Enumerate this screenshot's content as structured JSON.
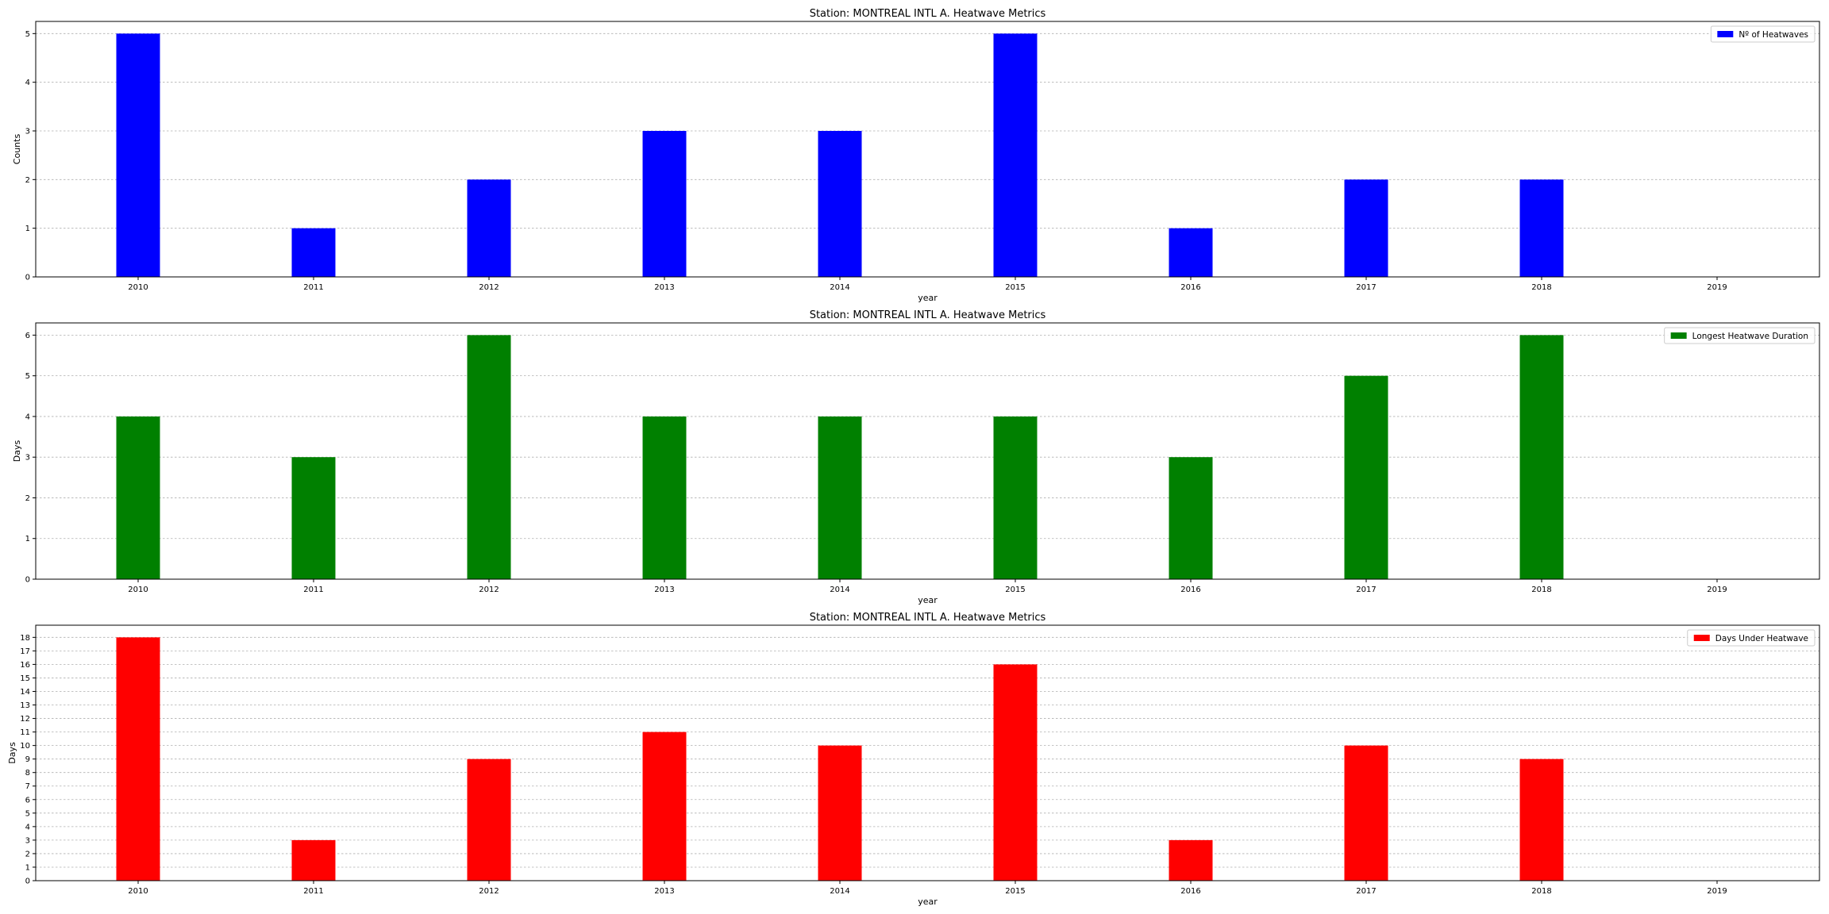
{
  "chart_data": [
    {
      "type": "bar",
      "title": "Station: MONTREAL INTL A. Heatwave Metrics",
      "xlabel": "year",
      "ylabel": "Counts",
      "categories": [
        "2010",
        "2011",
        "2012",
        "2013",
        "2014",
        "2015",
        "2016",
        "2017",
        "2018",
        "2019"
      ],
      "series": [
        {
          "name": "Nº of Heatwaves",
          "color": "#0000ff",
          "values": [
            5,
            1,
            2,
            3,
            3,
            5,
            1,
            2,
            2,
            0
          ]
        }
      ],
      "ylim": [
        0,
        5.25
      ],
      "yticks": [
        0,
        1,
        2,
        3,
        4,
        5
      ],
      "grid": "y-dashed",
      "legend_position": "top-right"
    },
    {
      "type": "bar",
      "title": "Station: MONTREAL INTL A. Heatwave Metrics",
      "xlabel": "year",
      "ylabel": "Days",
      "categories": [
        "2010",
        "2011",
        "2012",
        "2013",
        "2014",
        "2015",
        "2016",
        "2017",
        "2018",
        "2019"
      ],
      "series": [
        {
          "name": "Longest Heatwave Duration",
          "color": "#008000",
          "values": [
            4,
            3,
            6,
            4,
            4,
            4,
            3,
            5,
            6,
            0
          ]
        }
      ],
      "ylim": [
        0,
        6.3
      ],
      "yticks": [
        0,
        1,
        2,
        3,
        4,
        5,
        6
      ],
      "grid": "y-dashed",
      "legend_position": "top-right"
    },
    {
      "type": "bar",
      "title": "Station: MONTREAL INTL A. Heatwave Metrics",
      "xlabel": "year",
      "ylabel": "Days",
      "categories": [
        "2010",
        "2011",
        "2012",
        "2013",
        "2014",
        "2015",
        "2016",
        "2017",
        "2018",
        "2019"
      ],
      "series": [
        {
          "name": "Days Under Heatwave",
          "color": "#ff0000",
          "values": [
            18,
            3,
            9,
            11,
            10,
            16,
            3,
            10,
            9,
            0
          ]
        }
      ],
      "ylim": [
        0,
        18.9
      ],
      "yticks": [
        0,
        1,
        2,
        3,
        4,
        5,
        6,
        7,
        8,
        9,
        10,
        11,
        12,
        13,
        14,
        15,
        16,
        17,
        18
      ],
      "grid": "y-dashed",
      "legend_position": "top-right"
    }
  ]
}
